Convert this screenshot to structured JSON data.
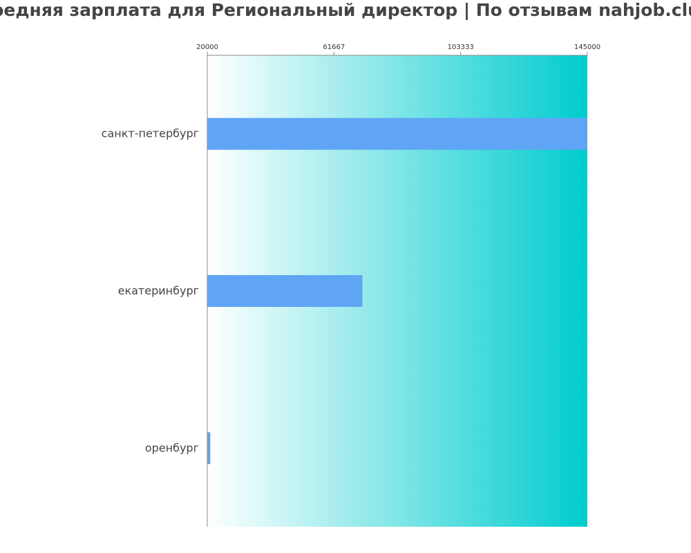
{
  "chart_data": {
    "type": "bar",
    "orientation": "horizontal",
    "title": "Средняя зарплата для Региональный директор | По отзывам nahjob.club",
    "xlabel": "",
    "ylabel": "",
    "xlim": [
      20000,
      145000
    ],
    "x_ticks": [
      "20000",
      "61667",
      "103333",
      "145000"
    ],
    "x_tick_values": [
      20000,
      61667,
      103333,
      145000
    ],
    "x_axis_position": "top",
    "grid": false,
    "categories": [
      "санкт-петербург",
      "екатеринбург",
      "оренбург"
    ],
    "values": [
      145000,
      71000,
      21000
    ],
    "colors": {
      "bar": "#60a5f5",
      "bar_small": "#6aa6d6",
      "gradient_start": "#ffffff",
      "gradient_end": "#00ccce",
      "axis": "#888888"
    }
  }
}
